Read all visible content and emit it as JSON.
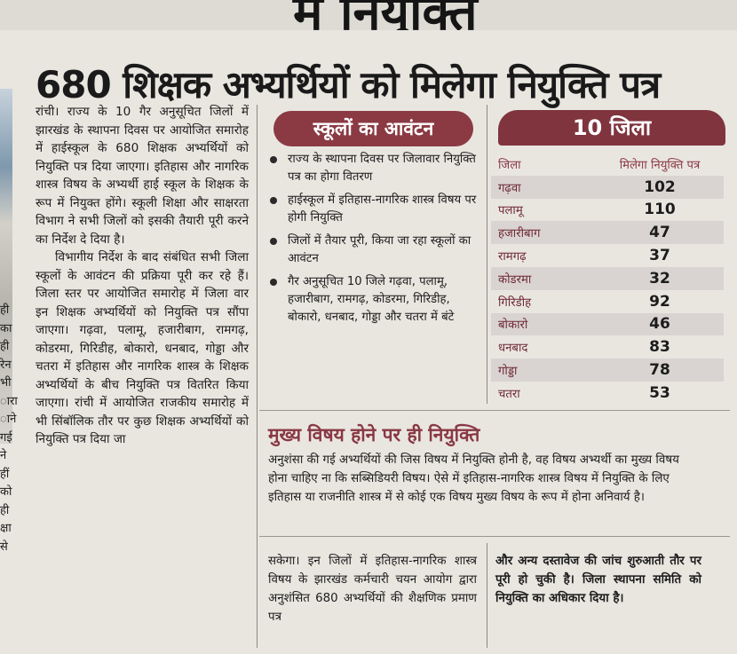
{
  "top_fragment": "में नियुक्ति",
  "headline": "680 शिक्षक अभ्यर्थियों को मिलेगा नियुक्ति पत्र",
  "left_column_fragments": [
    "ही",
    "का",
    "ही",
    "रेन",
    "भी",
    "ारा",
    "ाने",
    "गई",
    "ने",
    "हीं",
    "को",
    "ही",
    "क्षा",
    "से"
  ],
  "article_body": [
    "रांची। राज्य के 10 गैर अनुसूचित जिलों में झारखंड के स्थापना दिवस पर आयोजित समारोह में हाईस्कूल के 680 शिक्षक अभ्यर्थियों को नियुक्ति पत्र दिया जाएगा। इतिहास और नागरिक शास्त्र विषय के अभ्यर्थी हाई स्कूल के शिक्षक के रूप में नियुक्त होंगे। स्कूली शिक्षा और साक्षरता विभाग ने सभी जिलों को इसकी तैयारी पूरी करने का निर्देश दे दिया है।",
    "विभागीय निर्देश के बाद संबंधित सभी जिला स्कूलों के आवंटन की प्रक्रिया पूरी कर रहे हैं। जिला स्तर पर आयोजित समारोह में जिला वार इन शिक्षक अभ्यर्थियों को नियुक्ति पत्र सौंपा जाएगा। गढ़वा, पलामू, हजारीबाग, रामगढ़, कोडरमा, गिरिडीह, बोकारो, धनबाद, गोड्डा और चतरा में इतिहास और नागरिक शास्त्र के शिक्षक अभ्यर्थियों के बीच नियुक्ति पत्र वितरित किया जाएगा। रांची में आयोजित राजकीय समारोह में भी सिंबॉलिक तौर पर कुछ शिक्षक अभ्यर्थियों को नियुक्ति पत्र दिया जा"
  ],
  "allocation_box": {
    "title": "स्कूलों का आवंटन",
    "bullets": [
      "राज्य के स्थापना दिवस पर जिलावार नियुक्ति पत्र का होगा वितरण",
      "हाईस्कूल में इतिहास-नागरिक शास्त्र विषय पर होगी नियुक्ति",
      "जिलों में तैयार पूरी, किया जा रहा स्कूलों का आवंटन",
      "गैर अनुसूचित 10 जिले गढ़वा, पलामू, हजारीबाग, रामगढ़, कोडरमा, गिरिडीह, बोकारो, धनबाद, गोड्डा और चतरा में बंटे"
    ]
  },
  "district_table": {
    "title": "10 जिला",
    "col_district": "जिला",
    "col_count": "मिलेगा नियुक्ति पत्र",
    "rows": [
      {
        "district": "गढ़वा",
        "count": "102"
      },
      {
        "district": "पलामू",
        "count": "110"
      },
      {
        "district": "हजारीबाग",
        "count": "47"
      },
      {
        "district": "रामगढ़",
        "count": "37"
      },
      {
        "district": "कोडरमा",
        "count": "32"
      },
      {
        "district": "गिरिडीह",
        "count": "92"
      },
      {
        "district": "बोकारो",
        "count": "46"
      },
      {
        "district": "धनबाद",
        "count": "83"
      },
      {
        "district": "गोड्डा",
        "count": "78"
      },
      {
        "district": "चतरा",
        "count": "53"
      }
    ]
  },
  "subsection": {
    "heading": "मुख्य विषय होने पर ही नियुक्ति",
    "text": "अनुशंसा की गई अभ्यर्थियों की जिस विषय में नियुक्ति होनी है, वह विषय अभ्यर्थी का मुख्य विषय होना चाहिए ना कि सब्सिडियरी विषय। ऐसे में इतिहास-नागरिक शास्त्र विषय में नियुक्ति के लिए इतिहास या राजनीति शास्त्र में से कोई एक विषय मुख्य विषय के रूप में होना अनिवार्य है।"
  },
  "bottom_columns": [
    "सकेगा। इन जिलों में इतिहास-नागरिक शास्त्र विषय के झारखंड कर्मचारी चयन आयोग द्वारा अनुशंसित 680 अभ्यर्थियों की शैक्षणिक प्रमाण पत्र",
    "और अन्य दस्तावेज की जांच शुरुआती तौर पर पूरी हो चुकी है। जिला स्थापना समिति को नियुक्ति का अधिकार दिया है।"
  ]
}
